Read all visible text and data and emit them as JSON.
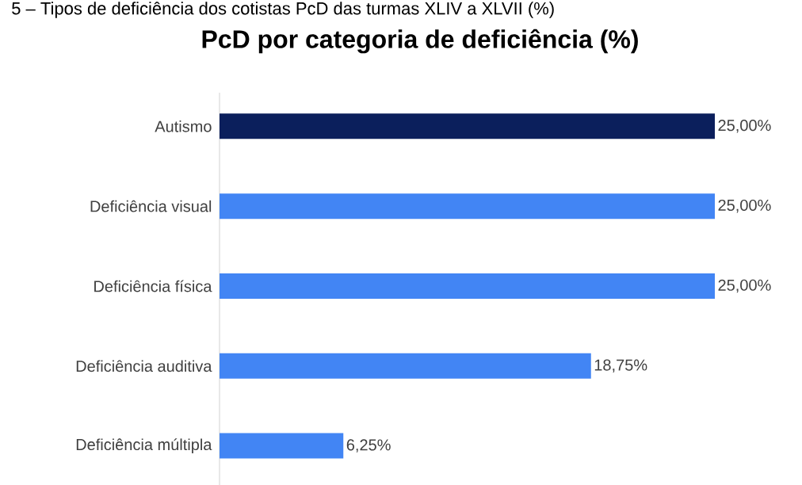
{
  "chart_data": {
    "type": "bar",
    "orientation": "horizontal",
    "title": "PcD por categoria de deficiência (%)",
    "subtitle": "5 – Tipos de deficiência dos cotistas PcD das turmas XLIV a XLVII (%)",
    "categories": [
      "Autismo",
      "Deficiência visual",
      "Deficiência física",
      "Deficiência auditiva",
      "Deficiência múltipla"
    ],
    "values": [
      25,
      25,
      25,
      18.75,
      6.25
    ],
    "colors": [
      "#0b1f5c",
      "#4285f4",
      "#4285f4",
      "#4285f4",
      "#4285f4"
    ],
    "value_labels": [
      "25,00%",
      "25,00%",
      "25,00%",
      "18,75%",
      "6,25%"
    ],
    "xlim": [
      0,
      25
    ]
  }
}
